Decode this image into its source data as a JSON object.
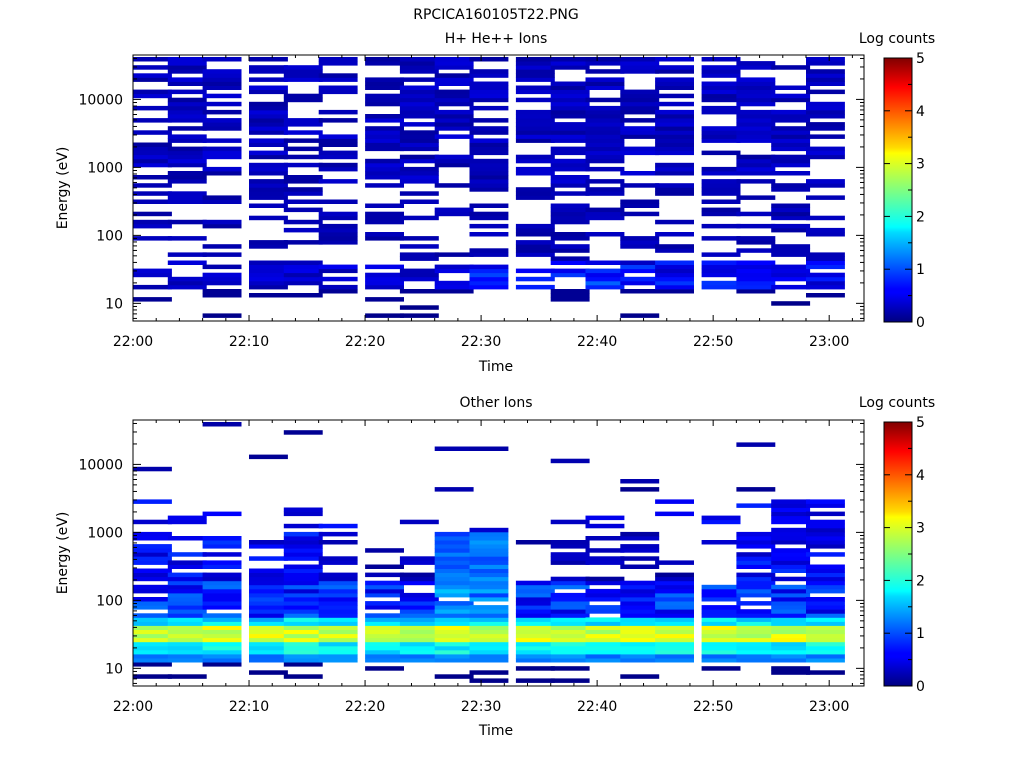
{
  "figure_title": "RPCICA160105T22.PNG",
  "colorbar": {
    "title": "Log counts",
    "ticks": [
      "0",
      "1",
      "2",
      "3",
      "4",
      "5"
    ],
    "range": [
      0,
      5
    ]
  },
  "chart_data": [
    {
      "type": "heatmap",
      "title": "H+ He++ Ions",
      "xlabel": "Time",
      "ylabel": "Energy (eV)",
      "y_scale": "log",
      "ylim": [
        5.5,
        45000
      ],
      "xlim": [
        "22:00",
        "23:03"
      ],
      "x_ticks": [
        "22:00",
        "22:10",
        "22:20",
        "22:30",
        "22:40",
        "22:50",
        "23:00"
      ],
      "y_ticks": [
        "10",
        "100",
        "1000",
        "10000"
      ],
      "time_bins_start": [
        "22:00",
        "22:03",
        "22:06",
        "22:10",
        "22:13",
        "22:16",
        "22:20",
        "22:23",
        "22:26",
        "22:29",
        "22:33",
        "22:36",
        "22:39",
        "22:42",
        "22:45",
        "22:49",
        "22:52",
        "22:55",
        "22:58"
      ],
      "summary": "Sparse low count rates (log counts ~0-0.8) across ~12 eV to 40 keV, densest above 1 keV; slightly elevated band (~1) near 25-35 eV after 22:30",
      "seed": 7
    },
    {
      "type": "heatmap",
      "title": "Other Ions",
      "xlabel": "Time",
      "ylabel": "Energy (eV)",
      "y_scale": "log",
      "ylim": [
        5.5,
        45000
      ],
      "xlim": [
        "22:00",
        "23:03"
      ],
      "x_ticks": [
        "22:00",
        "22:10",
        "22:20",
        "22:30",
        "22:40",
        "22:50",
        "23:00"
      ],
      "y_ticks": [
        "10",
        "100",
        "1000",
        "10000"
      ],
      "time_bins_start": [
        "22:00",
        "22:03",
        "22:06",
        "22:10",
        "22:13",
        "22:16",
        "22:20",
        "22:23",
        "22:26",
        "22:29",
        "22:33",
        "22:36",
        "22:39",
        "22:42",
        "22:45",
        "22:49",
        "22:52",
        "22:55",
        "22:58"
      ],
      "summary": "Intense band (log counts ~2.5-3.2) at ~25-40 eV throughout; ~1.5-2 at 18-22 eV; 0.3-1.2 from 50-500 eV; enhanced to ~1.3 up to 1 keV at 22:26-22:29; sparse counts up to ~35 keV",
      "seed": 19
    }
  ]
}
